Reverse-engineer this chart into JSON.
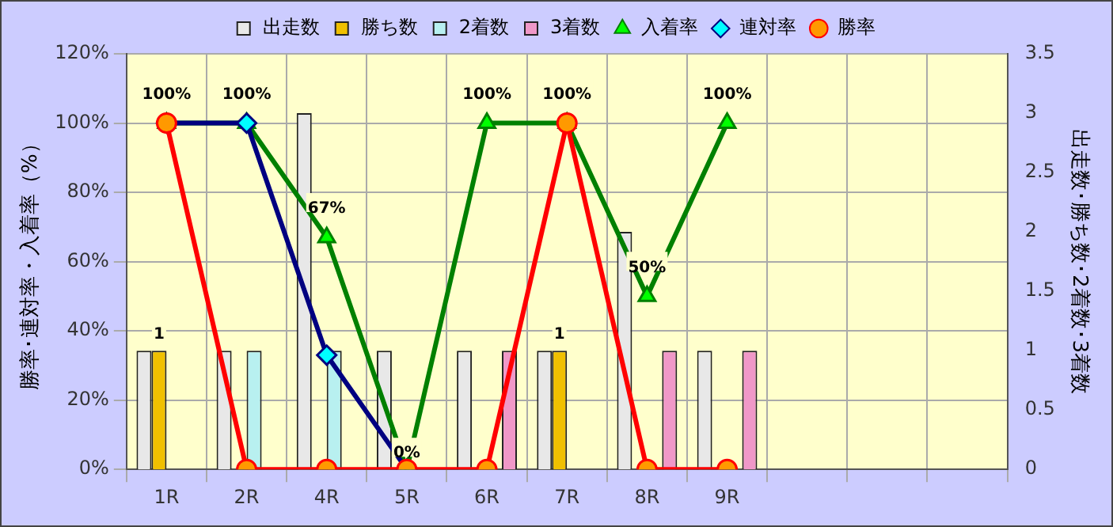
{
  "chart_data": {
    "type": "bar",
    "categories": [
      "1R",
      "2R",
      "4R",
      "5R",
      "6R",
      "7R",
      "8R",
      "9R",
      null,
      null,
      null
    ],
    "ylabel": "勝率･連対率・入着率（%）",
    "y2label": "出走数･勝ち数･2着数･3着数",
    "ylim": [
      0,
      120
    ],
    "yticks": [
      {
        "value": 0,
        "label": "0%"
      },
      {
        "value": 20,
        "label": "20%"
      },
      {
        "value": 40,
        "label": "40%"
      },
      {
        "value": 60,
        "label": "60%"
      },
      {
        "value": 80,
        "label": "80%"
      },
      {
        "value": 100,
        "label": "100%"
      },
      {
        "value": 120,
        "label": "120%"
      }
    ],
    "y2lim": [
      0,
      3.5
    ],
    "y2ticks": [
      0,
      0.5,
      1,
      1.5,
      2,
      2.5,
      3,
      3.5
    ],
    "grid": true,
    "legend": "top",
    "series": [
      {
        "name": "出走数",
        "type": "bar",
        "axis": "y2",
        "color": "#e8e8e8",
        "values": [
          1,
          1,
          3,
          1,
          1,
          1,
          2,
          1,
          null,
          null,
          null
        ]
      },
      {
        "name": "勝ち数",
        "type": "bar",
        "axis": "y2",
        "color": "#f0c000",
        "values": [
          1,
          null,
          null,
          null,
          null,
          1,
          null,
          null,
          null,
          null,
          null
        ],
        "value_labels": [
          "1",
          null,
          null,
          null,
          null,
          "1",
          null,
          null,
          null,
          null,
          null
        ]
      },
      {
        "name": "2着数",
        "type": "bar",
        "axis": "y2",
        "color": "#b8f0f0",
        "values": [
          null,
          1,
          1,
          null,
          null,
          null,
          null,
          null,
          null,
          null,
          null
        ]
      },
      {
        "name": "3着数",
        "type": "bar",
        "axis": "y2",
        "color": "#f098c8",
        "values": [
          null,
          null,
          null,
          null,
          1,
          null,
          1,
          1,
          null,
          null,
          null
        ]
      },
      {
        "name": "入着率",
        "type": "line",
        "axis": "y",
        "color": "#008000",
        "marker": "triangle",
        "values": [
          100,
          100,
          67,
          0,
          100,
          100,
          50,
          100,
          null,
          null,
          null
        ],
        "value_labels": [
          "100%",
          "100%",
          "67%",
          "0%",
          "100%",
          "100%",
          "50%",
          "100%",
          null,
          null,
          null
        ]
      },
      {
        "name": "連対率",
        "type": "line",
        "axis": "y",
        "color": "#000080",
        "marker": "diamond",
        "values": [
          100,
          100,
          33,
          0,
          null,
          null,
          null,
          null,
          null,
          null,
          null
        ]
      },
      {
        "name": "勝率",
        "type": "line",
        "axis": "y",
        "color": "#ff0000",
        "marker": "circle",
        "values": [
          100,
          0,
          0,
          0,
          0,
          100,
          0,
          0,
          null,
          null,
          null
        ]
      }
    ]
  }
}
